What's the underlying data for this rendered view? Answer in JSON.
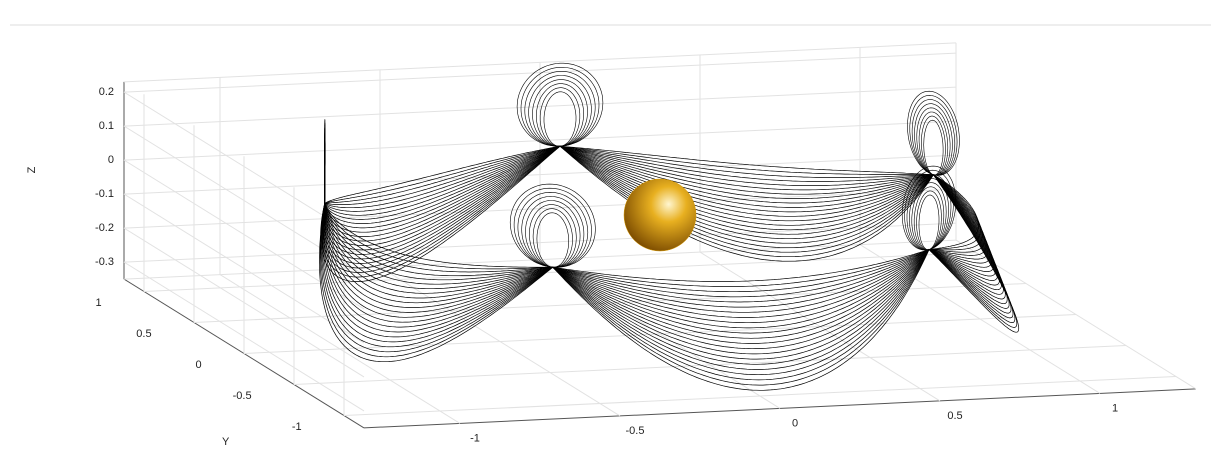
{
  "chart_data": {
    "type": "line3d",
    "ylabel": "Y",
    "zlabel": "Z",
    "xlim": [
      -1.3,
      1.3
    ],
    "ylim": [
      -1.2,
      1.2
    ],
    "zlim": [
      -0.35,
      0.23
    ],
    "xticks": [
      -1,
      -0.5,
      0,
      0.5,
      1
    ],
    "yticks": [
      -1,
      -0.5,
      0,
      0.5,
      1
    ],
    "zticks": [
      -0.3,
      -0.2,
      -0.1,
      0,
      0.1,
      0.2
    ],
    "grid": true,
    "line_color": "#000000",
    "sphere_color": "#d99a00"
  }
}
